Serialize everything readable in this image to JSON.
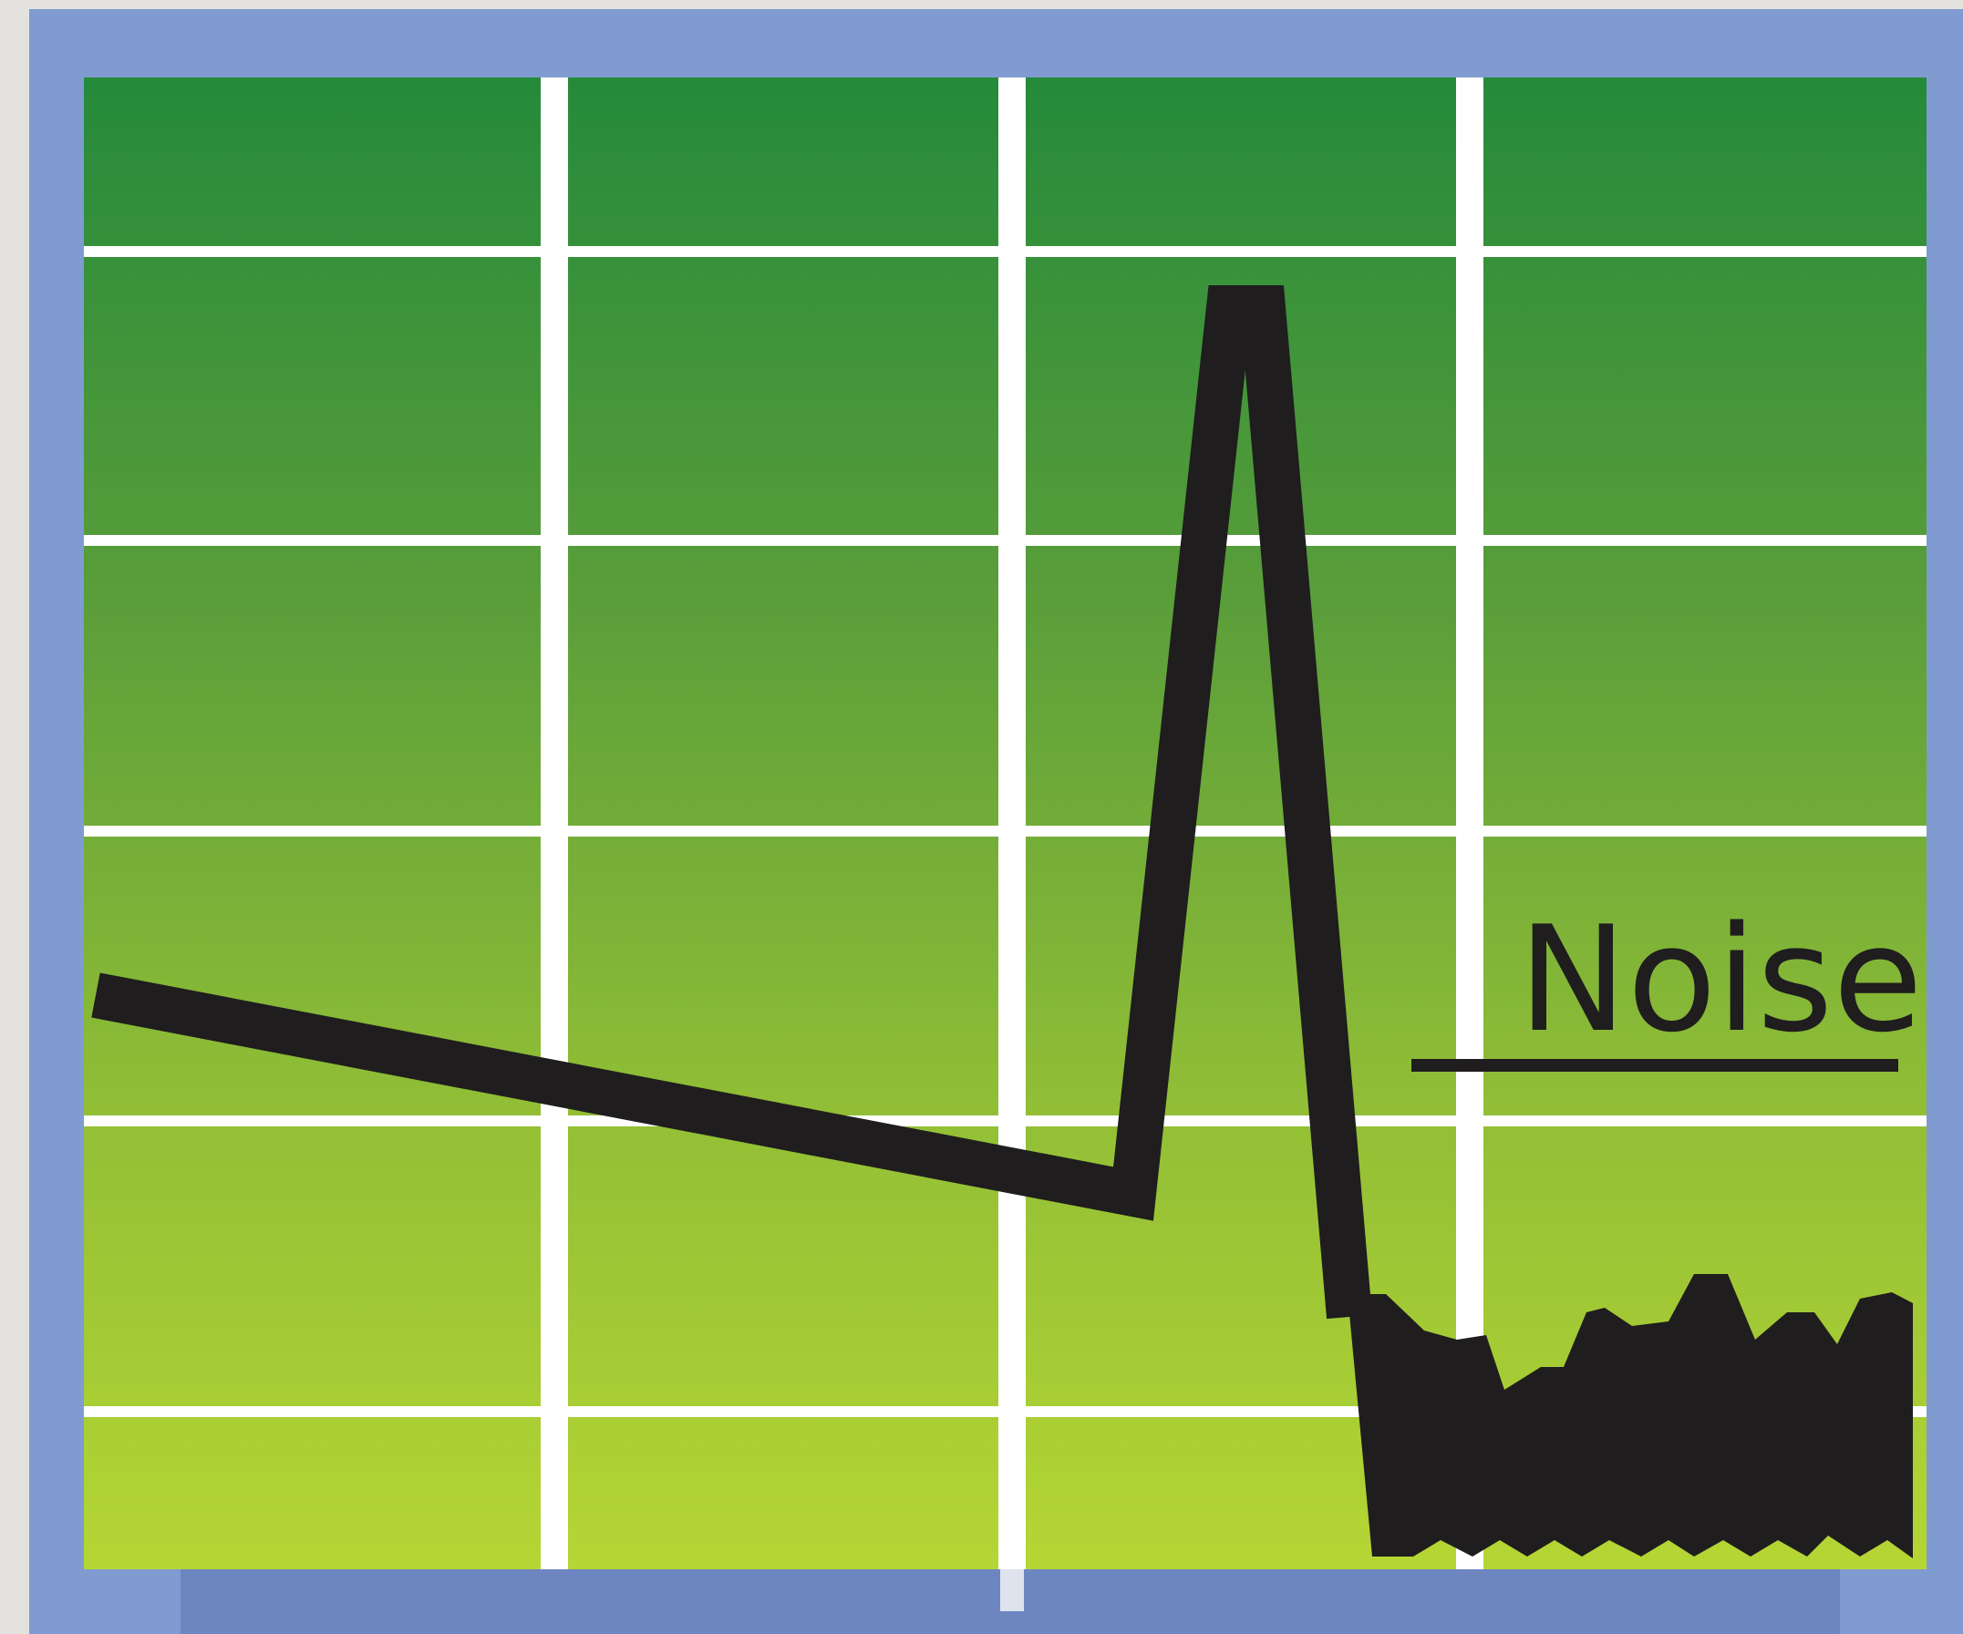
{
  "icon": {
    "name": "oscilloscope-noise-icon",
    "colors": {
      "background": "#e4e2df",
      "frame": "#7f9bd0",
      "frame_bottom": "#6d86c0",
      "grid_top": "#258a3b",
      "grid_bottom": "#b5d634",
      "grid_lines": "#ffffff",
      "trace": "#1f1d1e"
    },
    "label": "Noise"
  }
}
